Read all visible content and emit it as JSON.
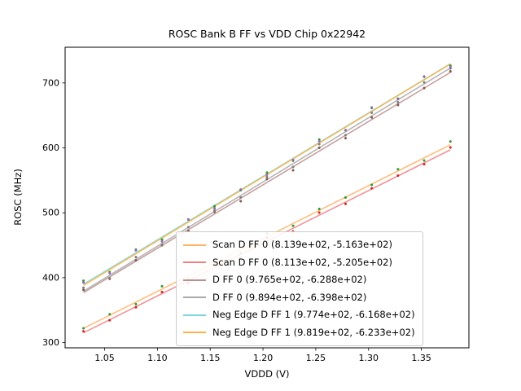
{
  "chart_data": {
    "type": "scatter",
    "title": "ROSC Bank B FF vs VDD Chip 0x22942",
    "xlabel": "VDDD (V)",
    "ylabel": "ROSC (MHz)",
    "xlim": [
      1.0126,
      1.395
    ],
    "ylim": [
      292,
      755
    ],
    "xtick_values": [
      1.05,
      1.1,
      1.15,
      1.2,
      1.25,
      1.3,
      1.35
    ],
    "xtick_labels": [
      "1.05",
      "1.10",
      "1.15",
      "1.20",
      "1.25",
      "1.30",
      "1.35"
    ],
    "ytick_values": [
      300,
      400,
      500,
      600,
      700
    ],
    "ytick_labels": [
      "300",
      "400",
      "500",
      "600",
      "700"
    ],
    "grid": false,
    "legend_position": "lower center-right",
    "x_points": [
      1.03,
      1.0548,
      1.0796,
      1.1044,
      1.1293,
      1.1541,
      1.1789,
      1.2037,
      1.2285,
      1.2533,
      1.2782,
      1.303,
      1.3278,
      1.3526,
      1.3775
    ],
    "series": [
      {
        "label": "Scan D FF 0 (8.139e+02, -5.163e+02)",
        "fit_slope": 813.9,
        "fit_intercept": -516.3,
        "line_color": "#ffb266",
        "marker_color": "#2ca02c"
      },
      {
        "label": "Scan D FF 0 (8.113e+02, -5.205e+02)",
        "fit_slope": 811.3,
        "fit_intercept": -520.5,
        "line_color": "#f08080",
        "marker_color": "#d62728"
      },
      {
        "label": "D FF 0 (9.765e+02, -6.288e+02)",
        "fit_slope": 976.5,
        "fit_intercept": -628.8,
        "line_color": "#bc8f8f",
        "marker_color": "#8c564b"
      },
      {
        "label": "D FF 0 (9.894e+02, -6.398e+02)",
        "fit_slope": 989.4,
        "fit_intercept": -639.8,
        "line_color": "#a9a9a9",
        "marker_color": "#7f7f7f"
      },
      {
        "label": "Neg Edge D FF 1 (9.774e+02, -6.168e+02)",
        "fit_slope": 977.4,
        "fit_intercept": -616.8,
        "line_color": "#76d7de",
        "marker_color": "#2ca02c"
      },
      {
        "label": "Neg Edge D FF 1 (9.819e+02, -6.233e+02)",
        "fit_slope": 981.9,
        "fit_intercept": -623.3,
        "line_color": "#ffb347",
        "marker_color": "#9467bd"
      }
    ]
  }
}
